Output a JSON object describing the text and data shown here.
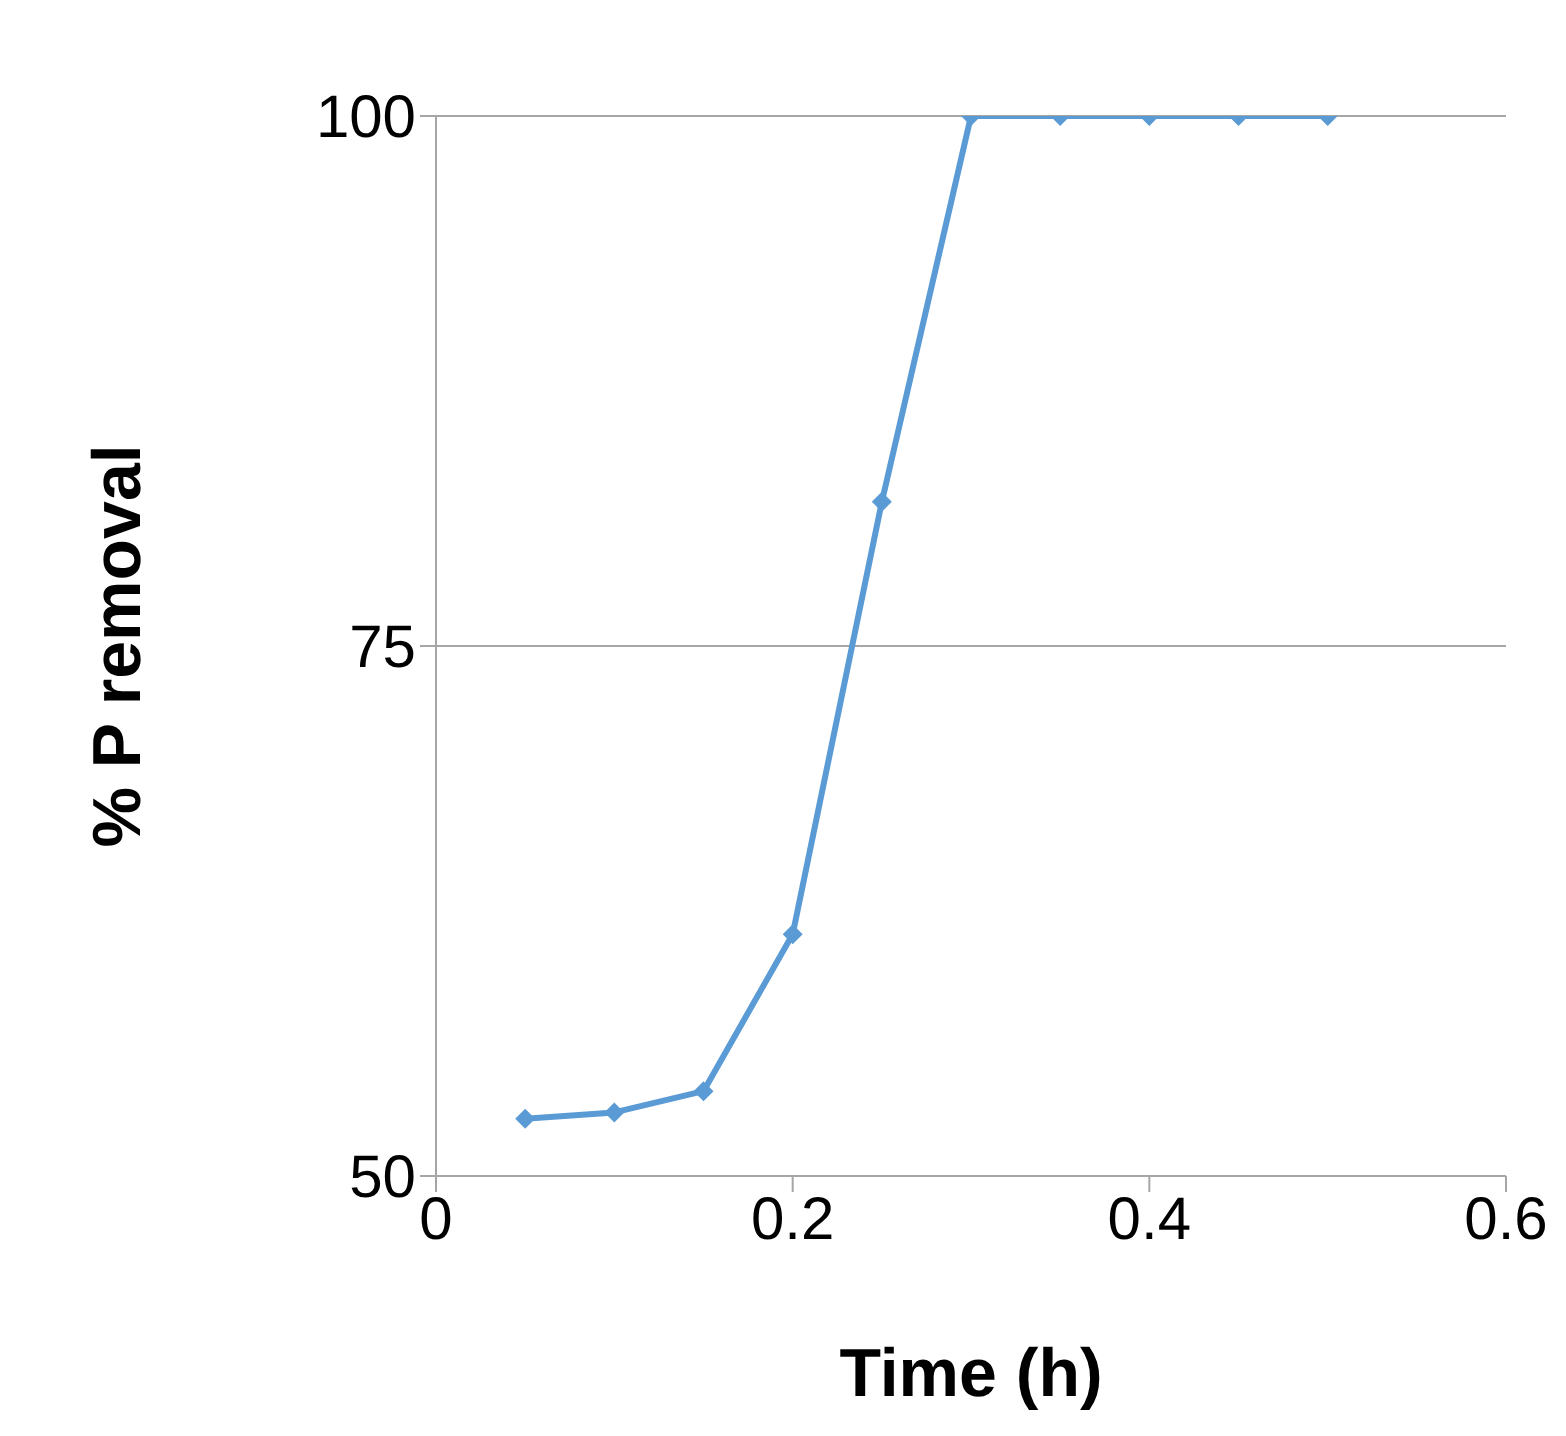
{
  "chart_data": {
    "type": "line",
    "xlabel": "Time (h)",
    "ylabel": "% P removal",
    "x": [
      0.05,
      0.1,
      0.15,
      0.2,
      0.25,
      0.3,
      0.35,
      0.4,
      0.45,
      0.5
    ],
    "series": [
      {
        "color": "#5b9bd5",
        "values": [
          52.7,
          53.0,
          54.0,
          61.4,
          81.8,
          100,
          100,
          100,
          100,
          100
        ]
      }
    ],
    "xlim": [
      0,
      0.6
    ],
    "xticks": [
      0,
      0.2,
      0.4,
      0.6
    ],
    "ylim": [
      50,
      100
    ],
    "yticks": [
      50,
      75,
      100
    ],
    "grid": "y",
    "legend": false,
    "marker": "diamond",
    "line_style": "solid"
  }
}
